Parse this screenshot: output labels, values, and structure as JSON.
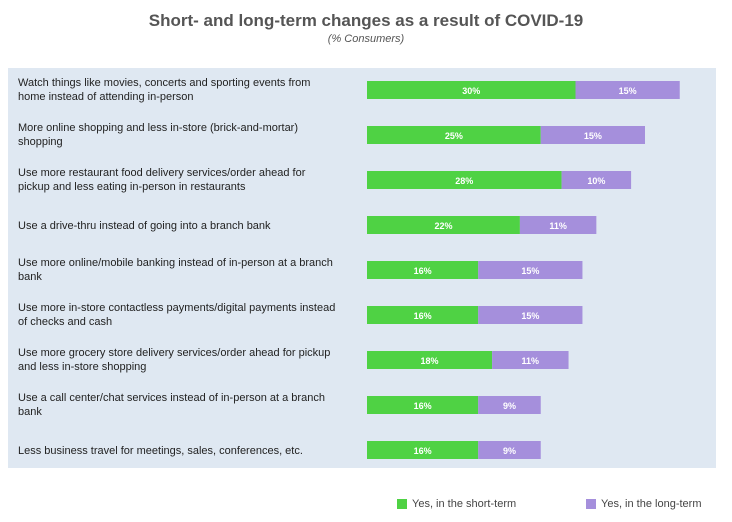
{
  "chart_data": {
    "type": "bar",
    "orientation": "horizontal",
    "stacked": true,
    "title": "Short- and long-term changes as a result of COVID-19",
    "subtitle": "(% Consumers)",
    "categories": [
      [
        "Watch things like movies, concerts and sporting events from",
        "home instead of attending in-person"
      ],
      [
        "More online shopping and less in-store (brick-and-mortar)",
        "shopping"
      ],
      [
        "Use more restaurant food delivery services/order ahead for",
        "pickup and less eating in-person in restaurants"
      ],
      [
        "Use a drive-thru instead of going into a branch bank"
      ],
      [
        "Use more online/mobile banking instead of in-person at a branch",
        "bank"
      ],
      [
        "Use more in-store contactless payments/digital payments instead",
        "of checks and cash"
      ],
      [
        "Use more grocery store delivery services/order ahead for pickup",
        "and less in-store shopping"
      ],
      [
        "Use a call center/chat services instead of in-person at a branch",
        "bank"
      ],
      [
        "Less business travel for meetings, sales, conferences, etc."
      ]
    ],
    "series": [
      {
        "name": "Yes, in the short-term",
        "color": "#4fd244",
        "values": [
          30,
          25,
          28,
          22,
          16,
          16,
          18,
          16,
          16
        ]
      },
      {
        "name": "Yes, in the long-term",
        "color": "#a58fdc",
        "values": [
          15,
          15,
          10,
          11,
          15,
          15,
          11,
          9,
          9
        ]
      }
    ],
    "value_suffix": "%",
    "grid": false,
    "legend_position": "bottom-right"
  }
}
